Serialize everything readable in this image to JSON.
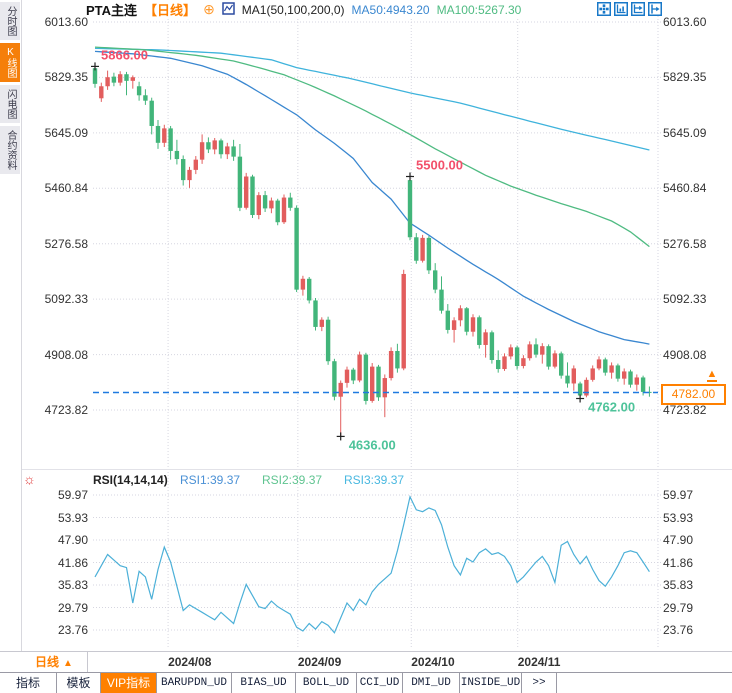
{
  "header": {
    "symbol": "PTA主连",
    "period": "【日线】",
    "add_icon": "⊕",
    "ma_settings": "MA1(50,100,200,0)",
    "ma50": "MA50:4943.20",
    "ma100": "MA100:5267.30"
  },
  "sidebar": {
    "items": [
      {
        "label": "分时图",
        "active": false
      },
      {
        "label": "K线图",
        "active": true
      },
      {
        "label": "闪电图",
        "active": false
      },
      {
        "label": "合约资料",
        "active": false
      }
    ]
  },
  "toolbar_icons": [
    "move-tool-icon",
    "y-axis-scale-icon",
    "x-axis-scale-icon",
    "goto-latest-icon"
  ],
  "chart_data": [
    {
      "type": "candlestick",
      "title": "PTA主连 日线",
      "y_ticks": [
        6013.6,
        5829.35,
        5645.09,
        5460.84,
        5276.58,
        5092.33,
        4908.08,
        4723.82
      ],
      "x_ticks": [
        {
          "label": "2024/08",
          "index": 11.6
        },
        {
          "label": "2024/09",
          "index": 32.2
        },
        {
          "label": "2024/10",
          "index": 50.2
        },
        {
          "label": "2024/11",
          "index": 67.1
        }
      ],
      "last_price": 4782.0,
      "ma50_value": 4943.2,
      "ma100_value": 5267.3,
      "annotations": [
        {
          "text": "5866.00",
          "price": 5866.0,
          "index": 0,
          "kind": "high"
        },
        {
          "text": "5500.00",
          "price": 5500.0,
          "index": 50,
          "kind": "high"
        },
        {
          "text": "4636.00",
          "price": 4636.0,
          "index": 39,
          "kind": "low"
        },
        {
          "text": "4762.00",
          "price": 4762.0,
          "index": 77,
          "kind": "low"
        }
      ],
      "candles": [
        [
          5860,
          5866,
          5795,
          5808
        ],
        [
          5760,
          5812,
          5748,
          5800
        ],
        [
          5800,
          5852,
          5788,
          5830
        ],
        [
          5832,
          5845,
          5800,
          5812
        ],
        [
          5812,
          5850,
          5802,
          5840
        ],
        [
          5840,
          5848,
          5770,
          5818
        ],
        [
          5818,
          5836,
          5792,
          5830
        ],
        [
          5800,
          5815,
          5752,
          5770
        ],
        [
          5770,
          5790,
          5738,
          5752
        ],
        [
          5752,
          5762,
          5640,
          5668
        ],
        [
          5668,
          5688,
          5592,
          5612
        ],
        [
          5612,
          5672,
          5598,
          5660
        ],
        [
          5660,
          5668,
          5556,
          5585
        ],
        [
          5585,
          5622,
          5540,
          5558
        ],
        [
          5558,
          5570,
          5470,
          5488
        ],
        [
          5488,
          5532,
          5462,
          5522
        ],
        [
          5522,
          5568,
          5508,
          5556
        ],
        [
          5556,
          5640,
          5542,
          5614
        ],
        [
          5614,
          5630,
          5578,
          5590
        ],
        [
          5590,
          5628,
          5574,
          5620
        ],
        [
          5620,
          5626,
          5560,
          5574
        ],
        [
          5574,
          5612,
          5558,
          5600
        ],
        [
          5600,
          5622,
          5552,
          5566
        ],
        [
          5566,
          5608,
          5385,
          5396
        ],
        [
          5396,
          5512,
          5390,
          5500
        ],
        [
          5500,
          5506,
          5362,
          5372
        ],
        [
          5372,
          5448,
          5358,
          5438
        ],
        [
          5438,
          5452,
          5382,
          5394
        ],
        [
          5394,
          5430,
          5378,
          5420
        ],
        [
          5420,
          5426,
          5338,
          5348
        ],
        [
          5348,
          5440,
          5342,
          5430
        ],
        [
          5430,
          5446,
          5386,
          5396
        ],
        [
          5396,
          5404,
          5116,
          5124
        ],
        [
          5124,
          5170,
          5104,
          5160
        ],
        [
          5160,
          5166,
          5078,
          5088
        ],
        [
          5088,
          5096,
          4988,
          5000
        ],
        [
          5000,
          5032,
          4986,
          5024
        ],
        [
          5024,
          5034,
          4874,
          4886
        ],
        [
          4886,
          4894,
          4756,
          4768
        ],
        [
          4768,
          4822,
          4636,
          4814
        ],
        [
          4814,
          4868,
          4798,
          4858
        ],
        [
          4858,
          4864,
          4810,
          4822
        ],
        [
          4822,
          4918,
          4816,
          4908
        ],
        [
          4908,
          4914,
          4742,
          4754
        ],
        [
          4754,
          4880,
          4748,
          4868
        ],
        [
          4868,
          4874,
          4754,
          4766
        ],
        [
          4766,
          4842,
          4700,
          4830
        ],
        [
          4830,
          4932,
          4822,
          4920
        ],
        [
          4920,
          4944,
          4848,
          4862
        ],
        [
          4862,
          5190,
          4856,
          5176
        ],
        [
          5488,
          5500,
          5288,
          5298
        ],
        [
          5298,
          5312,
          5210,
          5220
        ],
        [
          5220,
          5306,
          5214,
          5296
        ],
        [
          5296,
          5302,
          5176,
          5188
        ],
        [
          5188,
          5212,
          5112,
          5124
        ],
        [
          5124,
          5168,
          5044,
          5054
        ],
        [
          5054,
          5076,
          4978,
          4990
        ],
        [
          4990,
          5032,
          4948,
          5022
        ],
        [
          5022,
          5072,
          5002,
          5062
        ],
        [
          5062,
          5066,
          4972,
          4984
        ],
        [
          4984,
          5042,
          4968,
          5032
        ],
        [
          5032,
          5038,
          4928,
          4940
        ],
        [
          4940,
          4992,
          4898,
          4982
        ],
        [
          4982,
          4988,
          4878,
          4890
        ],
        [
          4890,
          4922,
          4848,
          4860
        ],
        [
          4860,
          4912,
          4854,
          4902
        ],
        [
          4902,
          4942,
          4892,
          4932
        ],
        [
          4932,
          4938,
          4858,
          4870
        ],
        [
          4870,
          4906,
          4862,
          4896
        ],
        [
          4896,
          4952,
          4888,
          4942
        ],
        [
          4942,
          4962,
          4898,
          4908
        ],
        [
          4908,
          4946,
          4878,
          4936
        ],
        [
          4936,
          4942,
          4858,
          4868
        ],
        [
          4868,
          4922,
          4862,
          4912
        ],
        [
          4912,
          4918,
          4828,
          4838
        ],
        [
          4838,
          4882,
          4798,
          4812
        ],
        [
          4812,
          4872,
          4788,
          4862
        ],
        [
          4812,
          4818,
          4762,
          4772
        ],
        [
          4772,
          4832,
          4766,
          4824
        ],
        [
          4824,
          4872,
          4818,
          4862
        ],
        [
          4862,
          4902,
          4856,
          4892
        ],
        [
          4892,
          4898,
          4838,
          4848
        ],
        [
          4848,
          4882,
          4828,
          4872
        ],
        [
          4872,
          4878,
          4818,
          4828
        ],
        [
          4828,
          4862,
          4808,
          4852
        ],
        [
          4852,
          4858,
          4798,
          4808
        ],
        [
          4808,
          4842,
          4788,
          4832
        ],
        [
          4832,
          4838,
          4772,
          4784
        ],
        [
          4784,
          4802,
          4768,
          4782
        ]
      ],
      "ma50": [
        [
          0,
          5916
        ],
        [
          6,
          5908
        ],
        [
          12,
          5893
        ],
        [
          17,
          5868
        ],
        [
          21,
          5840
        ],
        [
          24,
          5806
        ],
        [
          28,
          5756
        ],
        [
          32,
          5705
        ],
        [
          35,
          5655
        ],
        [
          38,
          5610
        ],
        [
          41,
          5560
        ],
        [
          44,
          5480
        ],
        [
          47,
          5425
        ],
        [
          50,
          5345
        ],
        [
          53,
          5305
        ],
        [
          56,
          5262
        ],
        [
          60,
          5208
        ],
        [
          64,
          5158
        ],
        [
          68,
          5102
        ],
        [
          72,
          5058
        ],
        [
          76,
          5018
        ],
        [
          80,
          4984
        ],
        [
          84,
          4958
        ],
        [
          88,
          4943
        ]
      ],
      "ma100": [
        [
          0,
          5930
        ],
        [
          8,
          5921
        ],
        [
          16,
          5903
        ],
        [
          22,
          5884
        ],
        [
          26,
          5862
        ],
        [
          30,
          5838
        ],
        [
          34,
          5805
        ],
        [
          38,
          5768
        ],
        [
          42,
          5728
        ],
        [
          46,
          5685
        ],
        [
          50,
          5640
        ],
        [
          54,
          5592
        ],
        [
          58,
          5548
        ],
        [
          62,
          5504
        ],
        [
          66,
          5468
        ],
        [
          70,
          5438
        ],
        [
          74,
          5410
        ],
        [
          78,
          5384
        ],
        [
          82,
          5352
        ],
        [
          85,
          5316
        ],
        [
          88,
          5267
        ]
      ],
      "ma200": [
        [
          0,
          5926
        ],
        [
          10,
          5921
        ],
        [
          20,
          5910
        ],
        [
          28,
          5888
        ],
        [
          32,
          5862
        ],
        [
          40,
          5828
        ],
        [
          50,
          5778
        ],
        [
          58,
          5744
        ],
        [
          66,
          5700
        ],
        [
          75,
          5652
        ],
        [
          82,
          5618
        ],
        [
          88,
          5588
        ]
      ]
    },
    {
      "type": "line",
      "title": "RSI(14,14,14)",
      "legend": [
        "RSI1:39.37",
        "RSI2:39.37",
        "RSI3:39.37"
      ],
      "y_ticks": [
        59.97,
        53.93,
        47.9,
        41.86,
        35.83,
        29.79,
        23.76
      ],
      "values": [
        38,
        41,
        44,
        42.5,
        41,
        40.5,
        31,
        39.5,
        38,
        32,
        40,
        46,
        42,
        35.5,
        29,
        30.5,
        29.5,
        28.5,
        27.5,
        26.5,
        28.5,
        27,
        25.5,
        31,
        36,
        33,
        30,
        29.5,
        31.5,
        30,
        29,
        28,
        24.5,
        23.5,
        25.5,
        24,
        26,
        25,
        23,
        27,
        31,
        29,
        32,
        30.5,
        34,
        36,
        37.5,
        39,
        45,
        52,
        59.5,
        56,
        55.5,
        56.5,
        55.8,
        52,
        46,
        41,
        38.5,
        43,
        42,
        44.5,
        45.5,
        44,
        44.5,
        43.5,
        41,
        36.5,
        38,
        40,
        42,
        43.5,
        41,
        36.5,
        46.5,
        47.5,
        44,
        41.5,
        43.5,
        40,
        37,
        35.5,
        38,
        41,
        44.5,
        45,
        44.5,
        42,
        39.4
      ]
    }
  ],
  "price_axis_box": "4782.00",
  "footer": {
    "period_label": "日线",
    "arrow": "▲"
  },
  "indicator_bar": {
    "tabs": [
      {
        "label": "指标",
        "active": false
      },
      {
        "label": "模板",
        "active": false
      },
      {
        "label": "VIP指标",
        "active": true
      },
      {
        "label": "BARUPDN_UD",
        "active": false
      },
      {
        "label": "BIAS_UD",
        "active": false
      },
      {
        "label": "BOLL_UD",
        "active": false
      },
      {
        "label": "CCI_UD",
        "active": false
      },
      {
        "label": "DMI_UD",
        "active": false
      },
      {
        "label": "INSIDE_UD",
        "active": false
      },
      {
        "label": ">>",
        "active": false
      }
    ]
  },
  "colors": {
    "up": "#e25d5d",
    "down": "#42b57a",
    "ma50": "#3a87d0",
    "ma100": "#4fbb82",
    "ma200": "#3fb3dc",
    "rsi_line": "#4cb0d8",
    "price_line": "#1f7ae0",
    "high_label": "#f2506b",
    "low_label": "#4ec39a",
    "accent": "#ff8000",
    "grid": "#d6d6e0",
    "axis_text": "#333333",
    "marker": "#222222"
  }
}
